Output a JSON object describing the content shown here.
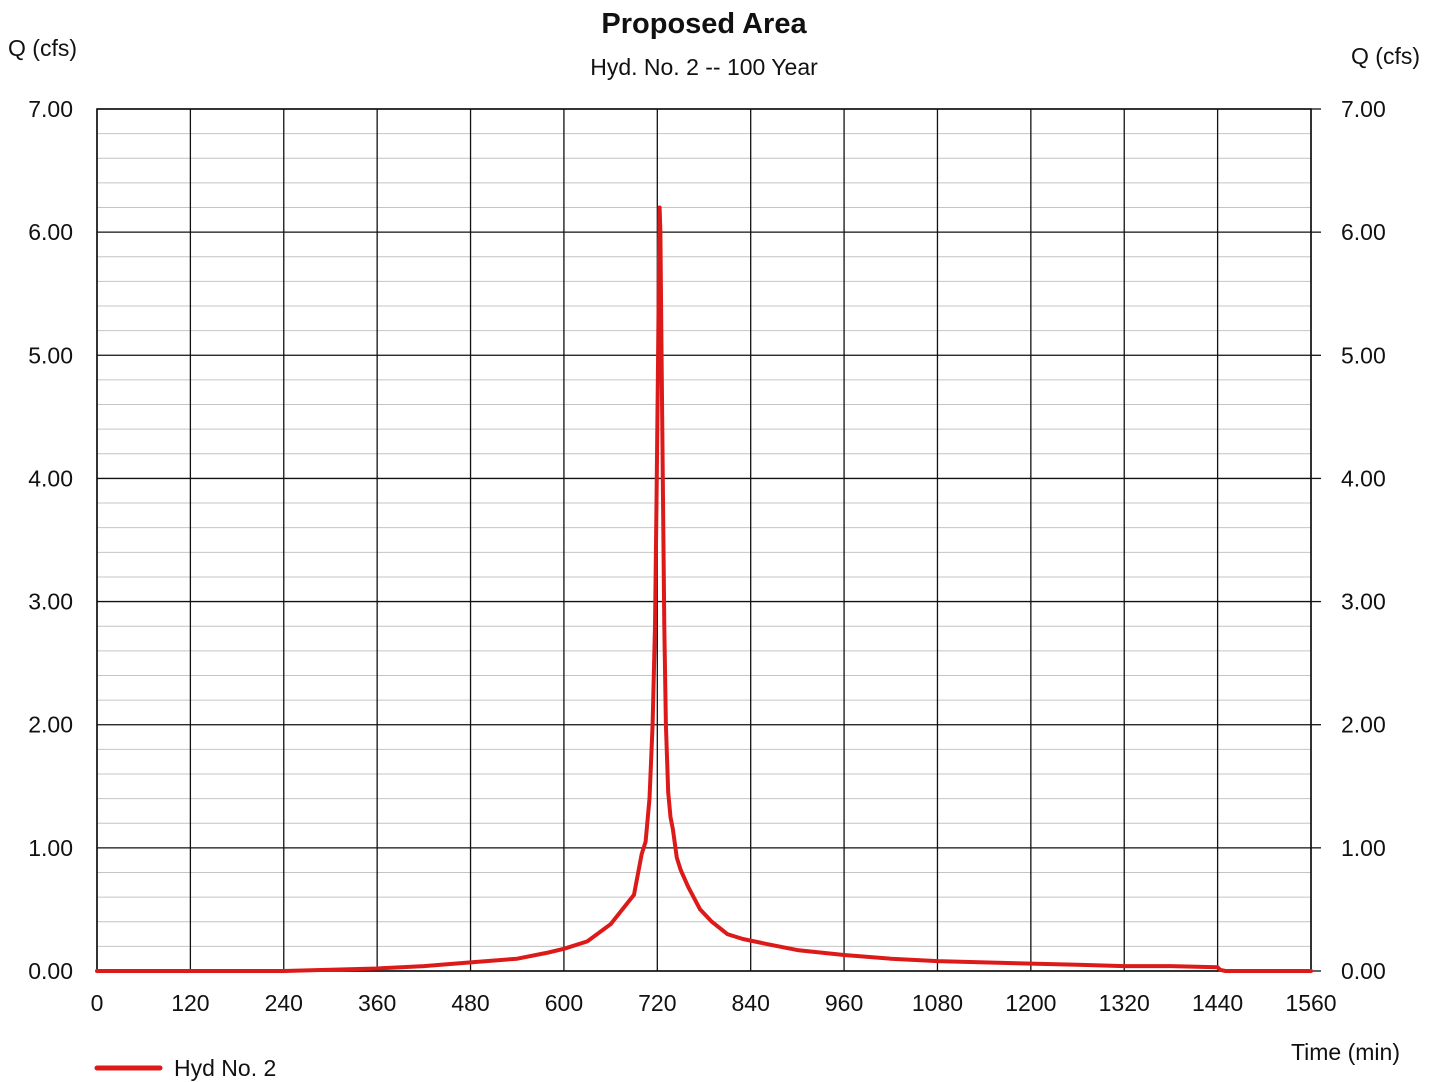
{
  "chart_data": {
    "type": "line",
    "title": "Proposed Area",
    "subtitle": "Hyd. No. 2 -- 100 Year",
    "ylabel_left": "Q (cfs)",
    "ylabel_right": "Q (cfs)",
    "xlabel": "Time (min)",
    "xlim": [
      0,
      1560
    ],
    "ylim": [
      0,
      7
    ],
    "x_ticks": [
      0,
      120,
      240,
      360,
      480,
      600,
      720,
      840,
      960,
      1080,
      1200,
      1320,
      1440,
      1560
    ],
    "x_tick_labels": [
      "0",
      "120",
      "240",
      "360",
      "480",
      "600",
      "720",
      "840",
      "960",
      "1080",
      "1200",
      "1320",
      "1440",
      "1560"
    ],
    "y_ticks": [
      0,
      1,
      2,
      3,
      4,
      5,
      6,
      7
    ],
    "y_tick_labels": [
      "0.00",
      "1.00",
      "2.00",
      "3.00",
      "4.00",
      "5.00",
      "6.00",
      "7.00"
    ],
    "minor_gridlines_per_major_y": 5,
    "grid": true,
    "legend_position": "bottom-left",
    "series": [
      {
        "name": "Hyd No. 2",
        "color": "#dd1a1a",
        "x": [
          0,
          120,
          240,
          300,
          360,
          420,
          480,
          540,
          580,
          600,
          630,
          660,
          690,
          700,
          705,
          710,
          714,
          717,
          719,
          721,
          722,
          723,
          724,
          725,
          727,
          729,
          731,
          734,
          737,
          740,
          745,
          750,
          760,
          775,
          790,
          810,
          830,
          860,
          900,
          960,
          1020,
          1080,
          1140,
          1200,
          1260,
          1320,
          1380,
          1440,
          1443,
          1450,
          1500,
          1560
        ],
        "y": [
          0.0,
          0.0,
          0.0,
          0.01,
          0.02,
          0.04,
          0.07,
          0.1,
          0.15,
          0.18,
          0.24,
          0.38,
          0.62,
          0.95,
          1.05,
          1.4,
          2.0,
          2.8,
          3.8,
          5.0,
          5.7,
          6.2,
          6.0,
          5.3,
          4.0,
          2.8,
          2.0,
          1.45,
          1.25,
          1.15,
          0.92,
          0.82,
          0.68,
          0.5,
          0.4,
          0.3,
          0.26,
          0.22,
          0.17,
          0.13,
          0.1,
          0.08,
          0.07,
          0.06,
          0.05,
          0.04,
          0.04,
          0.03,
          0.01,
          0.0,
          0.0,
          0.0
        ]
      }
    ]
  }
}
